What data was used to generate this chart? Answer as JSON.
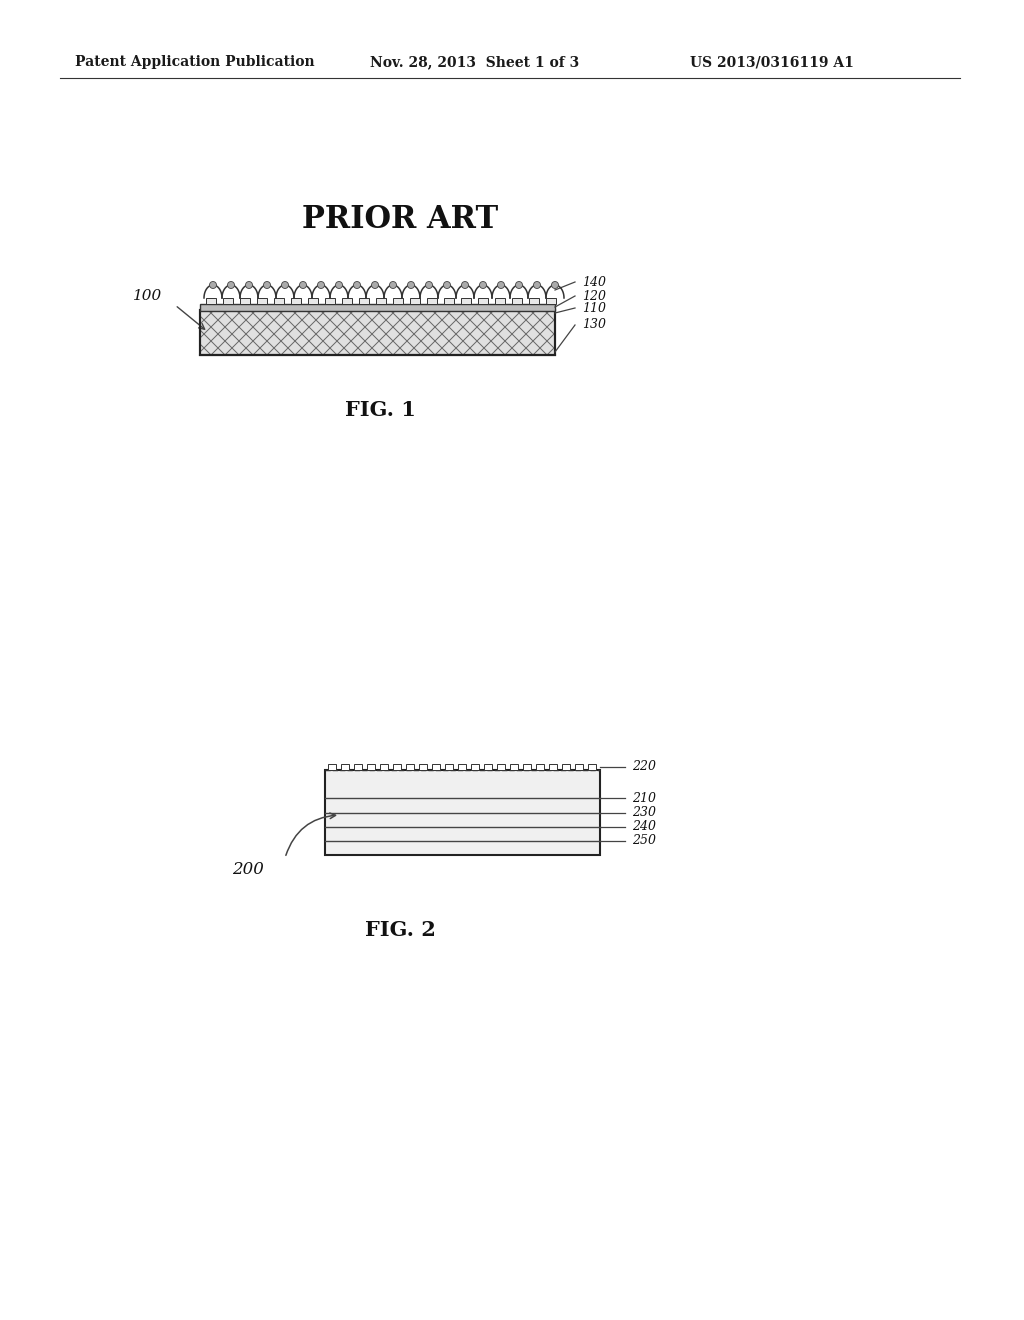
{
  "bg_color": "#ffffff",
  "header_left": "Patent Application Publication",
  "header_mid": "Nov. 28, 2013  Sheet 1 of 3",
  "header_right": "US 2013/0316119 A1",
  "prior_art_label": "PRIOR ART",
  "fig1_label": "FIG. 1",
  "fig2_label": "FIG. 2",
  "fig1_ref_100": "100",
  "fig1_ref_110": "110",
  "fig1_ref_120": "120",
  "fig1_ref_130": "130",
  "fig1_ref_140": "140",
  "fig2_ref_200": "200",
  "fig2_ref_210": "210",
  "fig2_ref_220": "220",
  "fig2_ref_230": "230",
  "fig2_ref_240": "240",
  "fig2_ref_250": "250"
}
